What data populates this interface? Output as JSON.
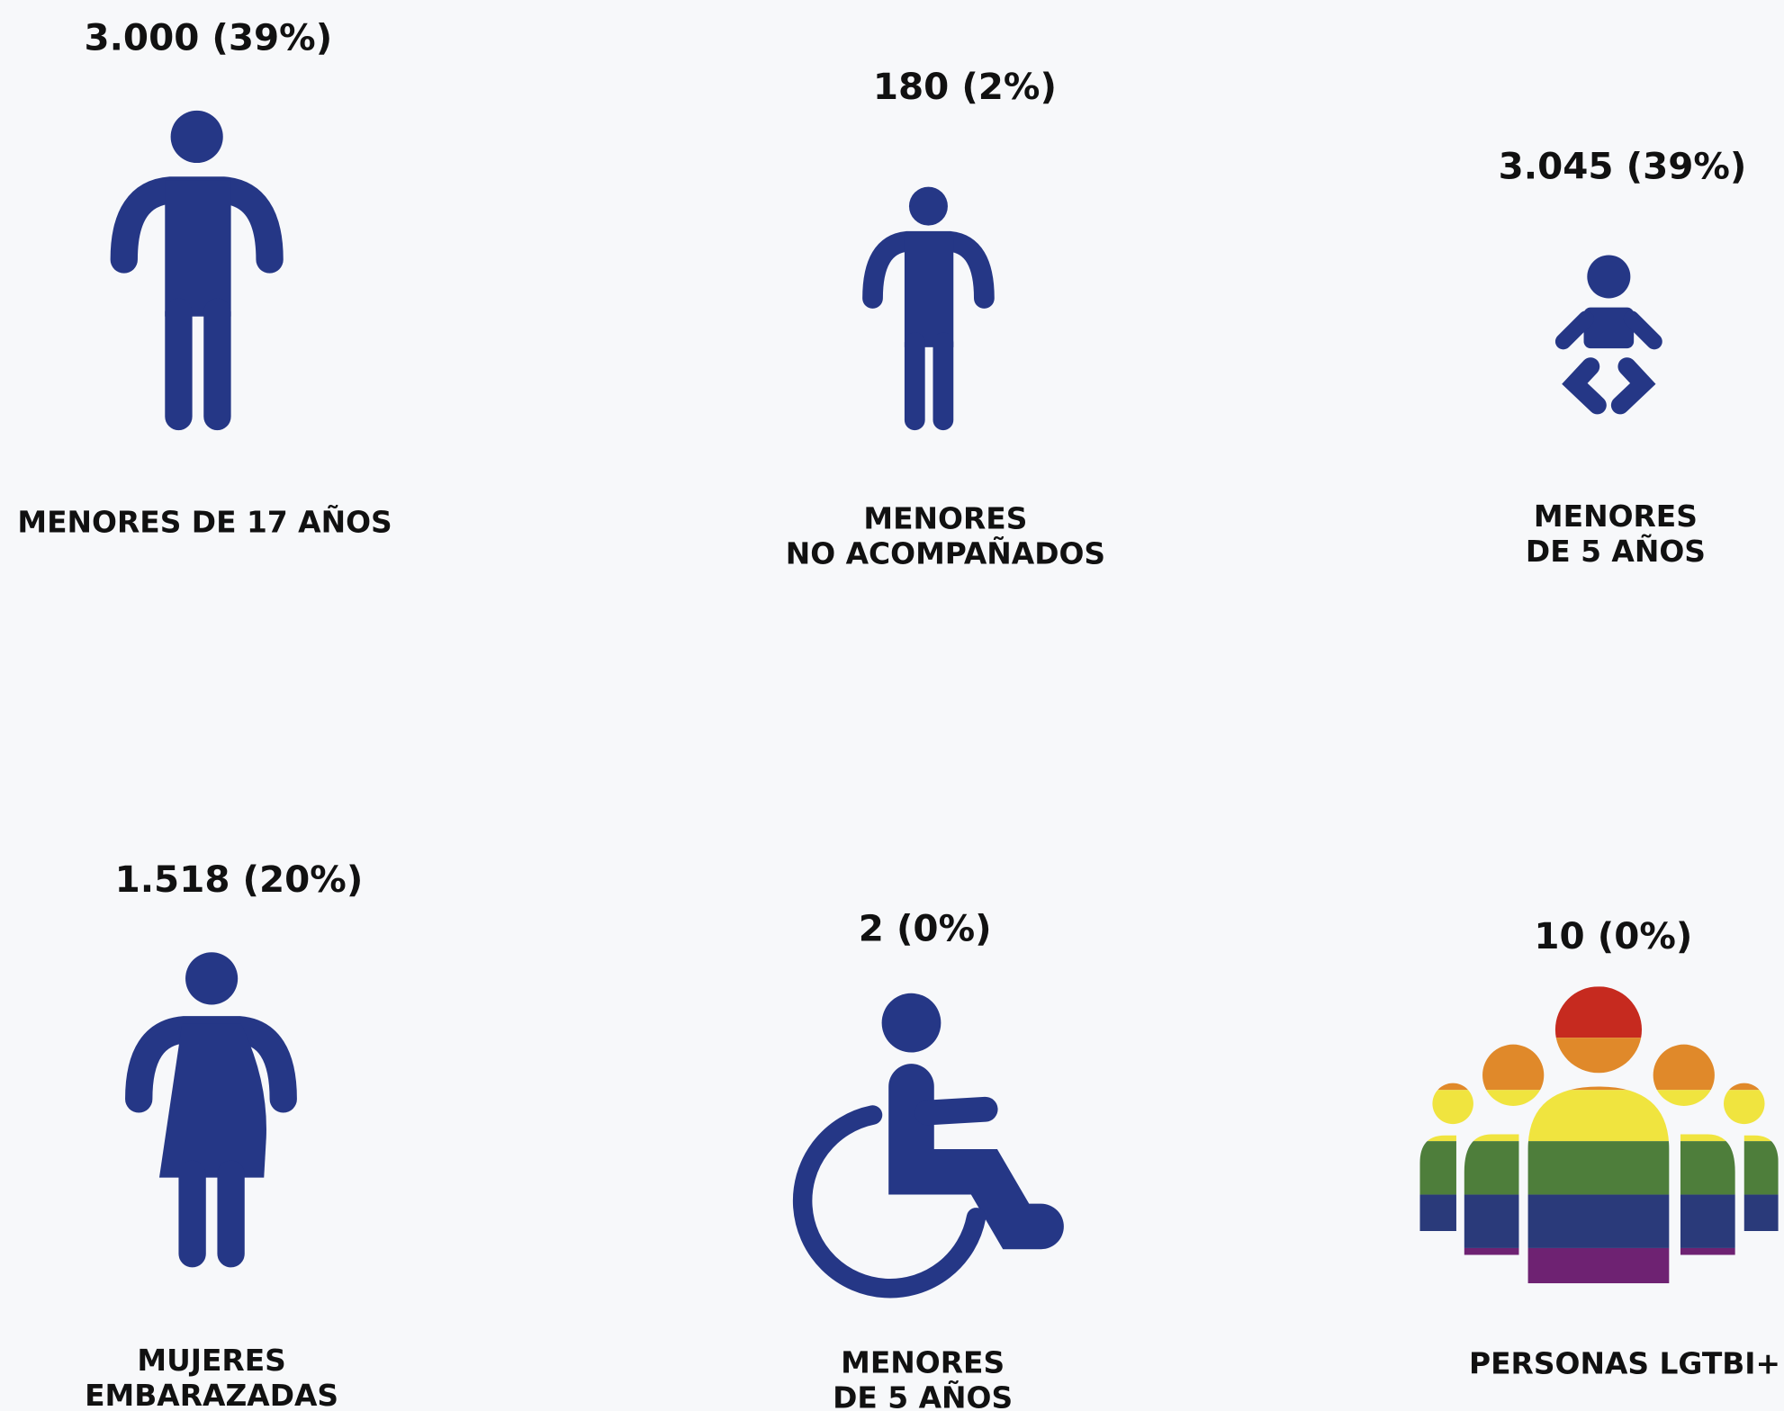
{
  "items": [
    {
      "value": "3.000 (39%)",
      "label": [
        "MENORES DE 17 AÑOS"
      ]
    },
    {
      "value": "180 (2%)",
      "label": [
        "MENORES",
        "NO ACOMPAÑADOS"
      ]
    },
    {
      "value": "3.045 (39%)",
      "label": [
        "MENORES",
        "DE 5 AÑOS"
      ]
    },
    {
      "value": "1.518 (20%)",
      "label": [
        "MUJERES",
        "EMBARAZADAS"
      ]
    },
    {
      "value": "2 (0%)",
      "label": [
        "MENORES",
        "DE 5 AÑOS"
      ]
    },
    {
      "value": "10 (0%)",
      "label": [
        "PERSONAS  LGTBI+"
      ]
    }
  ]
}
